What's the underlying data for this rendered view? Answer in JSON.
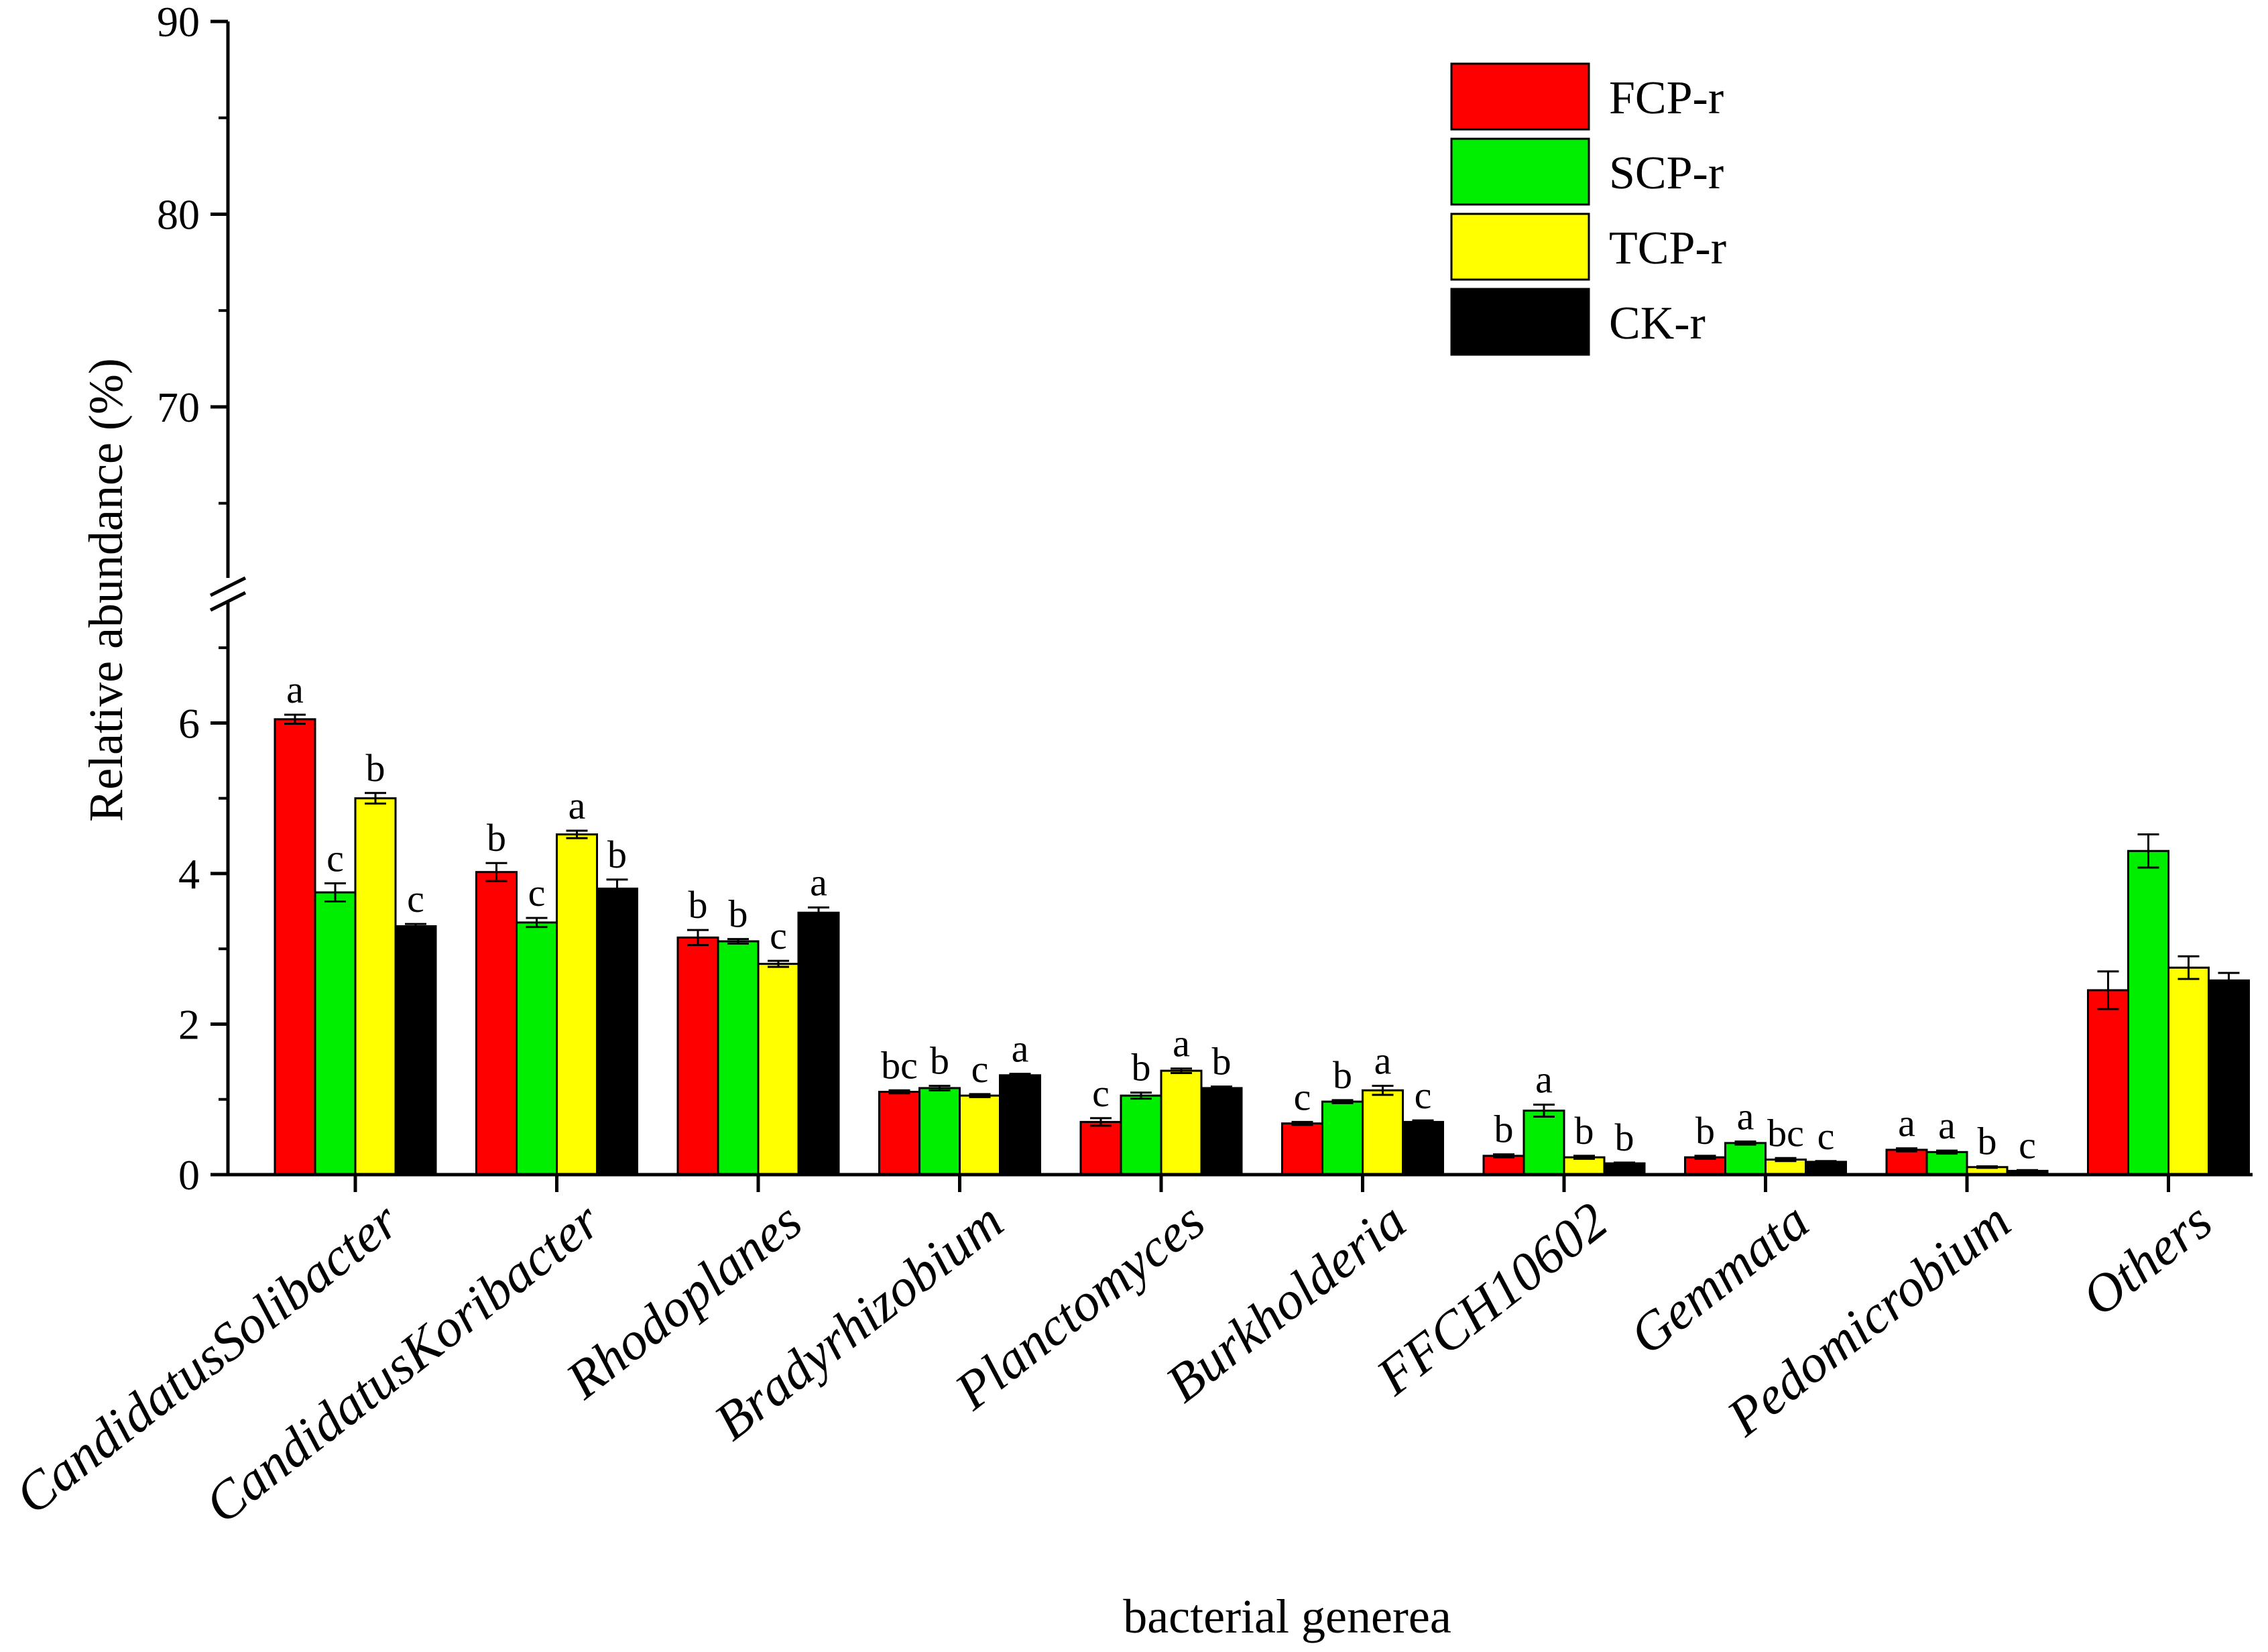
{
  "chart_data": {
    "type": "bar",
    "xlabel": "bacterial generea",
    "ylabel": "Relative abundance (%)",
    "ylim_lower": [
      0,
      7.5
    ],
    "ylim_upper": [
      60.5,
      90
    ],
    "yticks_lower": [
      "0",
      "2",
      "4",
      "6"
    ],
    "yticks_upper": [
      "70",
      "80",
      "90"
    ],
    "axis_break": true,
    "legend_position": "top-right",
    "categories": [
      "CandidatusSolibacter",
      "CandidatusKoribacter",
      "Rhodoplanes",
      "Bradyrhizobium",
      "Planctomyces",
      "Burkholderia",
      "FFCH10602",
      "Gemmata",
      "Pedomicrobium",
      "Others"
    ],
    "series": [
      {
        "name": "FCP-r",
        "color": "#ff0000",
        "values": [
          6.05,
          4.02,
          3.15,
          1.1,
          0.7,
          0.68,
          0.25,
          0.23,
          0.33,
          2.45
        ],
        "errors": [
          0.06,
          0.12,
          0.1,
          0.02,
          0.05,
          0.02,
          0.02,
          0.02,
          0.02,
          0.25
        ],
        "labels": [
          "a",
          "b",
          "b",
          "bc",
          "c",
          "c",
          "b",
          "b",
          "a",
          ""
        ]
      },
      {
        "name": "SCP-r",
        "color": "#00ee00",
        "values": [
          3.75,
          3.35,
          3.1,
          1.15,
          1.05,
          0.97,
          0.85,
          0.42,
          0.3,
          4.3
        ],
        "errors": [
          0.12,
          0.06,
          0.03,
          0.03,
          0.04,
          0.02,
          0.08,
          0.02,
          0.02,
          0.22
        ],
        "labels": [
          "c",
          "c",
          "b",
          "b",
          "b",
          "b",
          "a",
          "a",
          "a",
          ""
        ]
      },
      {
        "name": "TCP-r",
        "color": "#ffff00",
        "values": [
          5.0,
          4.52,
          2.8,
          1.05,
          1.38,
          1.12,
          0.23,
          0.2,
          0.1,
          2.75
        ],
        "errors": [
          0.07,
          0.05,
          0.04,
          0.02,
          0.03,
          0.06,
          0.02,
          0.02,
          0.01,
          0.15
        ],
        "labels": [
          "b",
          "a",
          "c",
          "c",
          "a",
          "a",
          "b",
          "bc",
          "b",
          ""
        ]
      },
      {
        "name": "CK-r",
        "color": "#000000",
        "values": [
          3.3,
          3.8,
          3.48,
          1.32,
          1.15,
          0.7,
          0.15,
          0.17,
          0.05,
          2.58
        ],
        "errors": [
          0.03,
          0.12,
          0.07,
          0.02,
          0.02,
          0.02,
          0.01,
          0.01,
          0.01,
          0.1
        ],
        "labels": [
          "c",
          "b",
          "a",
          "a",
          "b",
          "c",
          "b",
          "c",
          "c",
          ""
        ]
      }
    ]
  }
}
